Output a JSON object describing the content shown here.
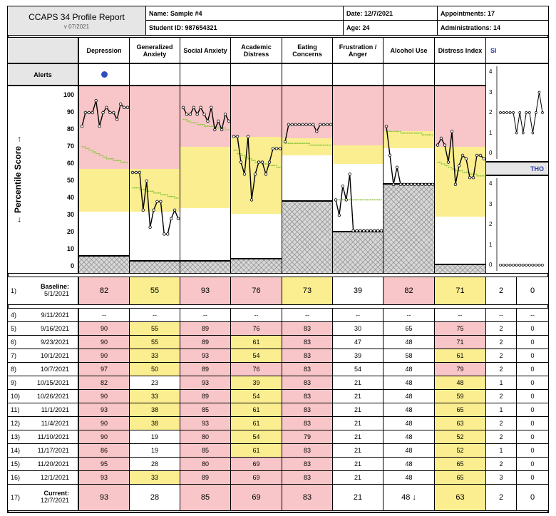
{
  "report": {
    "title": "CCAPS 34 Profile Report",
    "version": "v 07/2021"
  },
  "info": {
    "name": "Name:  Sample #4",
    "student_id": "Student ID:  987654321",
    "date": "Date:  12/7/2021",
    "age": "Age:  24",
    "appointments": "Appointments:  17",
    "administrations": "Administrations:  14"
  },
  "columns": [
    {
      "label": "Depression"
    },
    {
      "label": "Generalized Anxiety"
    },
    {
      "label": "Social Anxiety"
    },
    {
      "label": "Academic Distress"
    },
    {
      "label": "Eating Concerns"
    },
    {
      "label": "Frustration / Anger"
    },
    {
      "label": "Alcohol Use"
    },
    {
      "label": "Distress Index"
    }
  ],
  "si_label": "SI",
  "tho_label": "THO",
  "alerts_label": "Alerts",
  "axis_label": "← Percentile Score →",
  "y_ticks": [
    "100",
    "90",
    "80",
    "70",
    "60",
    "50",
    "40",
    "30",
    "20",
    "10",
    "0"
  ],
  "mini_ticks": [
    "4",
    "3",
    "2",
    "1",
    "0"
  ],
  "colors": {
    "pink": "#f8c6c8",
    "yellow": "#fbee90",
    "green_dots": "#8cc63f",
    "alert": "#2e4fbf",
    "hatch": "#d8d8d8"
  },
  "chart_data": {
    "type": "line",
    "ylim": [
      0,
      100
    ],
    "x": [
      "5/1/2021",
      "9/16/2021",
      "9/23/2021",
      "10/1/2021",
      "10/7/2021",
      "10/15/2021",
      "10/26/2021",
      "11/1/2021",
      "11/4/2021",
      "11/10/2021",
      "11/17/2021",
      "11/20/2021",
      "12/1/2021",
      "12/7/2021"
    ],
    "series": [
      {
        "name": "Depression",
        "values": [
          82,
          90,
          90,
          90,
          97,
          82,
          90,
          93,
          90,
          90,
          86,
          95,
          93,
          93
        ],
        "bands": {
          "pink": 57,
          "yellow": 32,
          "floor": 6
        }
      },
      {
        "name": "Generalized Anxiety",
        "values": [
          55,
          55,
          55,
          33,
          50,
          23,
          33,
          38,
          38,
          19,
          19,
          28,
          33,
          28
        ],
        "bands": {
          "pink": 57,
          "yellow": 32,
          "floor": 3
        }
      },
      {
        "name": "Social Anxiety",
        "values": [
          93,
          89,
          89,
          93,
          89,
          93,
          89,
          85,
          93,
          80,
          85,
          80,
          89,
          85
        ],
        "bands": {
          "pink": 70,
          "yellow": 34,
          "floor": 3
        }
      },
      {
        "name": "Academic Distress",
        "values": [
          76,
          76,
          61,
          54,
          76,
          39,
          54,
          61,
          61,
          54,
          61,
          69,
          69,
          69
        ],
        "bands": {
          "pink": 76,
          "yellow": 31,
          "floor": 4
        }
      },
      {
        "name": "Eating Concerns",
        "values": [
          73,
          83,
          83,
          83,
          83,
          83,
          83,
          83,
          83,
          79,
          83,
          83,
          83,
          83
        ],
        "bands": {
          "pink": 75,
          "yellow": 65,
          "floor": 38
        }
      },
      {
        "name": "Frustration / Anger",
        "values": [
          39,
          30,
          47,
          39,
          54,
          21,
          21,
          21,
          21,
          21,
          21,
          21,
          21,
          21
        ],
        "bands": {
          "pink": 71,
          "yellow": 60,
          "floor": 20
        }
      },
      {
        "name": "Alcohol Use",
        "values": [
          82,
          65,
          48,
          58,
          48,
          48,
          48,
          48,
          48,
          48,
          48,
          48,
          48,
          48
        ],
        "bands": {
          "pink": 79,
          "yellow": 69,
          "floor": 48
        }
      },
      {
        "name": "Distress Index",
        "values": [
          71,
          75,
          71,
          61,
          79,
          48,
          59,
          65,
          63,
          52,
          52,
          65,
          65,
          63
        ],
        "bands": {
          "pink": 70,
          "yellow": 29,
          "floor": 1
        }
      }
    ],
    "mini_si": {
      "ylim": [
        0,
        4
      ],
      "values": [
        2,
        2,
        2,
        2,
        2,
        1,
        2,
        1,
        2,
        2,
        1,
        2,
        3,
        2
      ]
    },
    "mini_tho": {
      "ylim": [
        0,
        4
      ],
      "values": [
        0,
        0,
        0,
        0,
        0,
        0,
        0,
        0,
        0,
        0,
        0,
        0,
        0,
        0
      ]
    }
  },
  "trend_averages": [
    [
      70,
      69,
      68,
      67,
      66,
      65,
      64,
      63,
      63,
      62,
      62,
      61,
      61
    ],
    [
      46,
      46,
      45,
      45,
      44,
      44,
      43,
      43,
      42,
      42,
      41,
      41,
      40
    ],
    [
      86,
      85,
      84,
      84,
      83,
      83,
      82,
      82,
      82,
      81,
      81,
      81,
      80
    ],
    [
      68,
      66,
      65,
      64,
      63,
      62,
      61,
      61,
      60,
      60,
      59,
      59,
      58
    ],
    [
      72,
      72,
      72,
      72,
      72,
      72,
      72,
      71,
      71,
      71,
      71,
      71,
      71
    ],
    [
      39,
      39,
      39,
      39,
      39,
      39,
      39,
      39,
      39,
      39,
      39,
      39,
      39
    ],
    [
      79,
      79,
      79,
      79,
      78,
      78,
      78,
      78,
      78,
      78,
      77,
      77,
      77
    ],
    [
      61,
      60,
      59,
      58,
      57,
      56,
      56,
      55,
      55,
      54,
      54,
      53,
      53
    ]
  ],
  "baseline": {
    "num": "1)",
    "label": "Baseline:",
    "date": "5/1/2021",
    "values": [
      "82",
      "55",
      "93",
      "76",
      "73",
      "39",
      "82",
      "71"
    ],
    "si": "2",
    "tho": "0",
    "colors": [
      "pink",
      "yellow",
      "pink",
      "pink",
      "yellow",
      "white",
      "pink",
      "yellow"
    ]
  },
  "rows": [
    {
      "num": "4)",
      "date": "9/11/2021",
      "values": [
        "--",
        "--",
        "--",
        "--",
        "--",
        "--",
        "--",
        "--"
      ],
      "si": "--",
      "tho": "--",
      "colors": [
        "white",
        "white",
        "white",
        "white",
        "white",
        "white",
        "white",
        "white"
      ]
    },
    {
      "num": "5)",
      "date": "9/16/2021",
      "values": [
        "90",
        "55",
        "89",
        "76",
        "83",
        "30",
        "65",
        "75"
      ],
      "si": "2",
      "tho": "0",
      "colors": [
        "pink",
        "yellow",
        "pink",
        "pink",
        "pink",
        "white",
        "white",
        "pink"
      ]
    },
    {
      "num": "6)",
      "date": "9/23/2021",
      "values": [
        "90",
        "55",
        "89",
        "61",
        "83",
        "47",
        "48",
        "71"
      ],
      "si": "2",
      "tho": "0",
      "colors": [
        "pink",
        "yellow",
        "pink",
        "yellow",
        "pink",
        "white",
        "white",
        "pink"
      ]
    },
    {
      "num": "7)",
      "date": "10/1/2021",
      "values": [
        "90",
        "33",
        "93",
        "54",
        "83",
        "39",
        "58",
        "61"
      ],
      "si": "2",
      "tho": "0",
      "colors": [
        "pink",
        "yellow",
        "pink",
        "yellow",
        "pink",
        "white",
        "white",
        "yellow"
      ]
    },
    {
      "num": "8)",
      "date": "10/7/2021",
      "values": [
        "97",
        "50",
        "89",
        "76",
        "83",
        "54",
        "48",
        "79"
      ],
      "si": "2",
      "tho": "0",
      "colors": [
        "pink",
        "yellow",
        "pink",
        "pink",
        "pink",
        "white",
        "white",
        "pink"
      ]
    },
    {
      "num": "9)",
      "date": "10/15/2021",
      "values": [
        "82",
        "23",
        "93",
        "39",
        "83",
        "21",
        "48",
        "48"
      ],
      "si": "1",
      "tho": "0",
      "colors": [
        "pink",
        "white",
        "pink",
        "yellow",
        "pink",
        "white",
        "white",
        "yellow"
      ]
    },
    {
      "num": "10)",
      "date": "10/26/2021",
      "values": [
        "90",
        "33",
        "89",
        "54",
        "83",
        "21",
        "48",
        "59"
      ],
      "si": "2",
      "tho": "0",
      "colors": [
        "pink",
        "yellow",
        "pink",
        "yellow",
        "pink",
        "white",
        "white",
        "yellow"
      ]
    },
    {
      "num": "11)",
      "date": "11/1/2021",
      "values": [
        "93",
        "38",
        "85",
        "61",
        "83",
        "21",
        "48",
        "65"
      ],
      "si": "1",
      "tho": "0",
      "colors": [
        "pink",
        "yellow",
        "pink",
        "yellow",
        "pink",
        "white",
        "white",
        "yellow"
      ]
    },
    {
      "num": "12)",
      "date": "11/4/2021",
      "values": [
        "90",
        "38",
        "93",
        "61",
        "83",
        "21",
        "48",
        "63"
      ],
      "si": "2",
      "tho": "0",
      "colors": [
        "pink",
        "yellow",
        "pink",
        "yellow",
        "pink",
        "white",
        "white",
        "yellow"
      ]
    },
    {
      "num": "13)",
      "date": "11/10/2021",
      "values": [
        "90",
        "19",
        "80",
        "54",
        "79",
        "21",
        "48",
        "52"
      ],
      "si": "2",
      "tho": "0",
      "colors": [
        "pink",
        "white",
        "pink",
        "yellow",
        "pink",
        "white",
        "white",
        "yellow"
      ]
    },
    {
      "num": "14)",
      "date": "11/17/2021",
      "values": [
        "86",
        "19",
        "85",
        "61",
        "83",
        "21",
        "48",
        "52"
      ],
      "si": "1",
      "tho": "0",
      "colors": [
        "pink",
        "white",
        "pink",
        "yellow",
        "pink",
        "white",
        "white",
        "yellow"
      ]
    },
    {
      "num": "15)",
      "date": "11/20/2021",
      "values": [
        "95",
        "28",
        "80",
        "69",
        "83",
        "21",
        "48",
        "65"
      ],
      "si": "2",
      "tho": "0",
      "colors": [
        "pink",
        "white",
        "pink",
        "pink",
        "pink",
        "white",
        "white",
        "yellow"
      ]
    },
    {
      "num": "16)",
      "date": "12/1/2021",
      "values": [
        "93",
        "33",
        "89",
        "69",
        "83",
        "21",
        "48",
        "65"
      ],
      "si": "3",
      "tho": "0",
      "colors": [
        "pink",
        "yellow",
        "pink",
        "pink",
        "pink",
        "white",
        "white",
        "yellow"
      ]
    }
  ],
  "current": {
    "num": "17)",
    "label": "Current:",
    "date": "12/7/2021",
    "values": [
      "93",
      "28",
      "85",
      "69",
      "83",
      "21",
      "48 ↓",
      "63"
    ],
    "si": "2",
    "tho": "0",
    "colors": [
      "pink",
      "white",
      "pink",
      "pink",
      "pink",
      "white",
      "white",
      "yellow"
    ]
  }
}
